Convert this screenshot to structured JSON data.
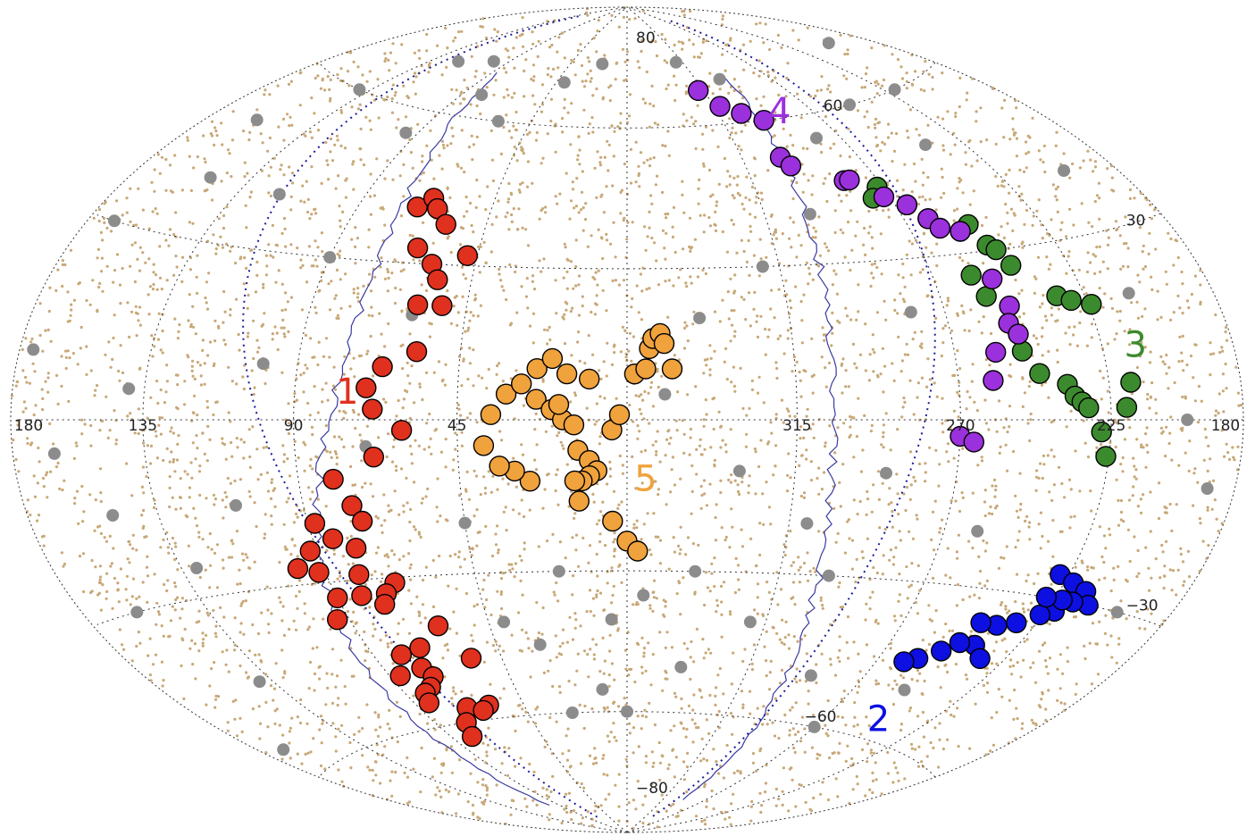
{
  "chart_data": {
    "type": "scatter",
    "projection": "aitoff",
    "grid": true,
    "longitude_ticks": [
      {
        "lon": 180,
        "text": "180",
        "side": "left"
      },
      {
        "lon": 135,
        "text": "135"
      },
      {
        "lon": 90,
        "text": "90"
      },
      {
        "lon": 45,
        "text": "45"
      },
      {
        "lon": 315,
        "text": "315"
      },
      {
        "lon": 270,
        "text": "270"
      },
      {
        "lon": 225,
        "text": "225"
      },
      {
        "lon": 180,
        "text": "180",
        "side": "right"
      }
    ],
    "latitude_ticks": [
      {
        "lat": 80,
        "text": "80"
      },
      {
        "lat": 60,
        "text": "60"
      },
      {
        "lat": 30,
        "text": "30"
      },
      {
        "lat": -30,
        "text": "−30"
      },
      {
        "lat": -60,
        "text": "−60"
      },
      {
        "lat": -80,
        "text": "−80"
      }
    ],
    "colors": {
      "background_points": "#c8a877",
      "gray_points": "#8c8c8c",
      "survey_outline": "#3a3aa0",
      "equator_line": "#1a1a99",
      "grid": "#333333"
    },
    "groups": [
      {
        "label": "1",
        "color": "#e0301e",
        "label_position": {
          "lon": 75,
          "lat": 3
        },
        "points": [
          [
            70,
            41
          ],
          [
            66,
            43
          ],
          [
            63,
            41
          ],
          [
            58,
            38
          ],
          [
            64,
            33
          ],
          [
            58,
            30
          ],
          [
            59,
            22
          ],
          [
            55,
            27
          ],
          [
            52,
            22
          ],
          [
            48,
            32
          ],
          [
            57,
            13
          ],
          [
            66,
            10
          ],
          [
            70,
            6
          ],
          [
            68,
            2
          ],
          [
            60,
            -2
          ],
          [
            68,
            -7
          ],
          [
            80,
            -11
          ],
          [
            76,
            -16
          ],
          [
            74,
            -19
          ],
          [
            88,
            -19
          ],
          [
            84,
            -22
          ],
          [
            78,
            -24
          ],
          [
            92,
            -24
          ],
          [
            98,
            -27
          ],
          [
            92,
            -28
          ],
          [
            80,
            -29
          ],
          [
            70,
            -31
          ],
          [
            74,
            -33
          ],
          [
            76,
            -35
          ],
          [
            82,
            -33
          ],
          [
            90,
            -33
          ],
          [
            94,
            -37
          ],
          [
            72,
            -44
          ],
          [
            80,
            -45
          ],
          [
            76,
            -48
          ],
          [
            74,
            -50
          ],
          [
            78,
            -52
          ],
          [
            82,
            -53
          ],
          [
            70,
            -57
          ],
          [
            76,
            -60
          ],
          [
            80,
            -63
          ],
          [
            84,
            -55
          ],
          [
            86,
            -49
          ],
          [
            60,
            -57
          ],
          [
            64,
            -58
          ],
          [
            56,
            -47
          ],
          [
            62,
            -40
          ]
        ]
      },
      {
        "label": "2",
        "color": "#0d10e0",
        "label_position": {
          "lon": 240,
          "lat": -58
        },
        "points": [
          [
            228,
            -26
          ],
          [
            222,
            -27
          ],
          [
            216,
            -28
          ],
          [
            212,
            -30
          ],
          [
            218,
            -30
          ],
          [
            222,
            -32
          ],
          [
            226,
            -33
          ],
          [
            232,
            -35
          ],
          [
            238,
            -36
          ],
          [
            244,
            -36
          ],
          [
            240,
            -40
          ],
          [
            246,
            -40
          ],
          [
            250,
            -42
          ],
          [
            256,
            -44
          ],
          [
            260,
            -45
          ],
          [
            234,
            -42
          ],
          [
            222,
            -30
          ],
          [
            228,
            -30
          ]
        ]
      },
      {
        "label": "3",
        "color": "#3c8a2e",
        "label_position": {
          "lon": 215,
          "lat": 10
        },
        "points": [
          [
            272,
            44
          ],
          [
            276,
            42
          ],
          [
            266,
            40
          ],
          [
            262,
            37
          ],
          [
            254,
            34
          ],
          [
            250,
            35
          ],
          [
            248,
            31
          ],
          [
            246,
            30
          ],
          [
            244,
            27
          ],
          [
            258,
            26
          ],
          [
            256,
            22
          ],
          [
            234,
            21
          ],
          [
            230,
            20
          ],
          [
            224,
            19
          ],
          [
            250,
            12
          ],
          [
            246,
            8
          ],
          [
            238,
            6
          ],
          [
            236,
            4
          ],
          [
            234,
            3
          ],
          [
            232,
            2
          ],
          [
            218,
            6
          ],
          [
            220,
            2
          ],
          [
            228,
            -2
          ],
          [
            226,
            -6
          ]
        ]
      },
      {
        "label": "4",
        "color": "#9b30dd",
        "label_position": {
          "lon": 290,
          "lat": 59
        },
        "points": [
          [
            318,
            68
          ],
          [
            312,
            64
          ],
          [
            304,
            62
          ],
          [
            296,
            60
          ],
          [
            300,
            52
          ],
          [
            298,
            50
          ],
          [
            282,
            46
          ],
          [
            280,
            46
          ],
          [
            272,
            42
          ],
          [
            266,
            40
          ],
          [
            262,
            37
          ],
          [
            260,
            35
          ],
          [
            254,
            34
          ],
          [
            252,
            25
          ],
          [
            250,
            20
          ],
          [
            252,
            17
          ],
          [
            250,
            15
          ],
          [
            258,
            12
          ],
          [
            260,
            7
          ],
          [
            270,
            -3
          ],
          [
            266,
            -4
          ]
        ]
      },
      {
        "label": "5",
        "color": "#f0a23c",
        "label_position": {
          "lon": 355,
          "lat": -14
        },
        "points": [
          [
            24,
            4
          ],
          [
            20,
            2
          ],
          [
            17,
            0
          ],
          [
            18,
            3
          ],
          [
            14,
            -1
          ],
          [
            13,
            -6
          ],
          [
            10,
            -8
          ],
          [
            8,
            -10
          ],
          [
            10,
            -11
          ],
          [
            12,
            -12
          ],
          [
            14,
            -12
          ],
          [
            13,
            -16
          ],
          [
            4,
            -20
          ],
          [
            0,
            -24
          ],
          [
            -3,
            -26
          ],
          [
            26,
            -12
          ],
          [
            30,
            -10
          ],
          [
            34,
            -9
          ],
          [
            38,
            -5
          ],
          [
            36,
            1
          ],
          [
            32,
            5
          ],
          [
            28,
            7
          ],
          [
            24,
            10
          ],
          [
            20,
            12
          ],
          [
            16,
            9
          ],
          [
            10,
            8
          ],
          [
            4,
            -2
          ],
          [
            2,
            1
          ],
          [
            -2,
            9
          ],
          [
            -5,
            10
          ],
          [
            -6,
            14
          ],
          [
            -7,
            16
          ],
          [
            -9,
            17
          ],
          [
            -10,
            15
          ],
          [
            -12,
            10
          ]
        ]
      }
    ],
    "gray_points_approx": [
      [
        160,
        50
      ],
      [
        140,
        60
      ],
      [
        120,
        70
      ],
      [
        100,
        72
      ],
      [
        150,
        40
      ],
      [
        170,
        30
      ],
      [
        175,
        10
      ],
      [
        165,
        -5
      ],
      [
        150,
        -15
      ],
      [
        160,
        -30
      ],
      [
        140,
        -45
      ],
      [
        170,
        -55
      ],
      [
        200,
        70
      ],
      [
        220,
        60
      ],
      [
        240,
        50
      ],
      [
        200,
        40
      ],
      [
        210,
        20
      ],
      [
        200,
        0
      ],
      [
        190,
        -10
      ],
      [
        200,
        -30
      ],
      [
        250,
        60
      ],
      [
        280,
        55
      ],
      [
        300,
        40
      ],
      [
        320,
        30
      ],
      [
        340,
        20
      ],
      [
        350,
        5
      ],
      [
        330,
        -10
      ],
      [
        310,
        -20
      ],
      [
        320,
        -40
      ],
      [
        340,
        -50
      ],
      [
        360,
        -60
      ],
      [
        20,
        -30
      ],
      [
        30,
        -45
      ],
      [
        10,
        -55
      ],
      [
        40,
        -40
      ],
      [
        60,
        20
      ],
      [
        90,
        30
      ],
      [
        100,
        10
      ],
      [
        110,
        -15
      ],
      [
        130,
        -25
      ],
      [
        140,
        5
      ],
      [
        120,
        40
      ],
      [
        95,
        55
      ],
      [
        80,
        65
      ],
      [
        60,
        60
      ],
      [
        40,
        70
      ],
      [
        20,
        75
      ],
      [
        320,
        75
      ],
      [
        300,
        70
      ],
      [
        280,
        20
      ],
      [
        290,
        -10
      ],
      [
        260,
        -20
      ],
      [
        250,
        -50
      ],
      [
        270,
        -60
      ],
      [
        290,
        -50
      ],
      [
        300,
        -30
      ],
      [
        340,
        -30
      ],
      [
        355,
        -35
      ],
      [
        5,
        -40
      ],
      [
        25,
        -60
      ],
      [
        45,
        -20
      ],
      [
        70,
        -5
      ]
    ]
  }
}
